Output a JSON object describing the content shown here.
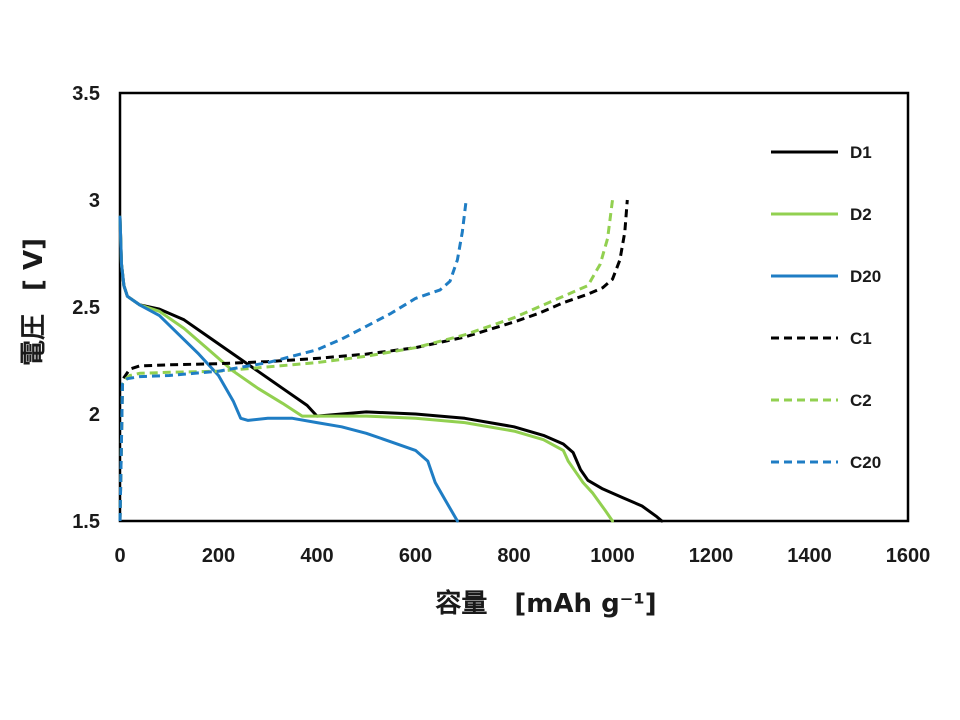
{
  "chart_data": {
    "type": "line",
    "xlabel": "容量",
    "xlabel_unit": "[mAh g⁻¹]",
    "ylabel": "電圧",
    "ylabel_unit": "[ V]",
    "xlim": [
      0,
      1600
    ],
    "ylim": [
      1.5,
      3.5
    ],
    "x_ticks": [
      "0",
      "200",
      "400",
      "600",
      "800",
      "1000",
      "1200",
      "1400",
      "1600"
    ],
    "y_ticks": [
      "1.5",
      "2",
      "2.5",
      "3",
      "3.5"
    ],
    "grid": false,
    "legend_position": "right",
    "series": [
      {
        "name": "D1",
        "color": "#000000",
        "dash": "solid",
        "points": [
          [
            0,
            2.92
          ],
          [
            3,
            2.7
          ],
          [
            8,
            2.6
          ],
          [
            15,
            2.55
          ],
          [
            40,
            2.51
          ],
          [
            80,
            2.49
          ],
          [
            130,
            2.44
          ],
          [
            180,
            2.36
          ],
          [
            230,
            2.28
          ],
          [
            280,
            2.2
          ],
          [
            330,
            2.12
          ],
          [
            380,
            2.04
          ],
          [
            400,
            1.99
          ],
          [
            450,
            2.0
          ],
          [
            500,
            2.01
          ],
          [
            600,
            2.0
          ],
          [
            700,
            1.98
          ],
          [
            800,
            1.94
          ],
          [
            860,
            1.9
          ],
          [
            900,
            1.86
          ],
          [
            920,
            1.82
          ],
          [
            935,
            1.74
          ],
          [
            950,
            1.69
          ],
          [
            980,
            1.65
          ],
          [
            1020,
            1.61
          ],
          [
            1060,
            1.57
          ],
          [
            1090,
            1.52
          ],
          [
            1100,
            1.5
          ]
        ]
      },
      {
        "name": "D2",
        "color": "#92d050",
        "dash": "solid",
        "points": [
          [
            0,
            2.92
          ],
          [
            3,
            2.7
          ],
          [
            8,
            2.6
          ],
          [
            15,
            2.55
          ],
          [
            40,
            2.51
          ],
          [
            80,
            2.48
          ],
          [
            130,
            2.4
          ],
          [
            180,
            2.3
          ],
          [
            230,
            2.2
          ],
          [
            280,
            2.12
          ],
          [
            330,
            2.05
          ],
          [
            370,
            1.99
          ],
          [
            400,
            1.99
          ],
          [
            450,
            1.99
          ],
          [
            500,
            1.99
          ],
          [
            600,
            1.98
          ],
          [
            700,
            1.96
          ],
          [
            800,
            1.92
          ],
          [
            860,
            1.88
          ],
          [
            900,
            1.83
          ],
          [
            910,
            1.78
          ],
          [
            925,
            1.73
          ],
          [
            940,
            1.68
          ],
          [
            960,
            1.63
          ],
          [
            985,
            1.55
          ],
          [
            1000,
            1.5
          ]
        ]
      },
      {
        "name": "D20",
        "color": "#1f7dc4",
        "dash": "solid",
        "points": [
          [
            0,
            2.92
          ],
          [
            3,
            2.7
          ],
          [
            8,
            2.6
          ],
          [
            15,
            2.55
          ],
          [
            40,
            2.51
          ],
          [
            80,
            2.46
          ],
          [
            120,
            2.37
          ],
          [
            160,
            2.28
          ],
          [
            200,
            2.18
          ],
          [
            230,
            2.06
          ],
          [
            245,
            1.98
          ],
          [
            260,
            1.97
          ],
          [
            300,
            1.98
          ],
          [
            350,
            1.98
          ],
          [
            400,
            1.96
          ],
          [
            450,
            1.94
          ],
          [
            500,
            1.91
          ],
          [
            550,
            1.87
          ],
          [
            600,
            1.83
          ],
          [
            625,
            1.78
          ],
          [
            640,
            1.68
          ],
          [
            660,
            1.6
          ],
          [
            675,
            1.54
          ],
          [
            685,
            1.5
          ]
        ]
      },
      {
        "name": "C1",
        "color": "#000000",
        "dash": "dashed",
        "points": [
          [
            0,
            1.5
          ],
          [
            5,
            2.16
          ],
          [
            20,
            2.21
          ],
          [
            40,
            2.225
          ],
          [
            100,
            2.23
          ],
          [
            200,
            2.235
          ],
          [
            300,
            2.245
          ],
          [
            400,
            2.26
          ],
          [
            500,
            2.28
          ],
          [
            600,
            2.31
          ],
          [
            700,
            2.36
          ],
          [
            800,
            2.43
          ],
          [
            850,
            2.47
          ],
          [
            900,
            2.52
          ],
          [
            950,
            2.56
          ],
          [
            980,
            2.59
          ],
          [
            1000,
            2.63
          ],
          [
            1015,
            2.72
          ],
          [
            1025,
            2.85
          ],
          [
            1030,
            3.0
          ]
        ]
      },
      {
        "name": "C2",
        "color": "#92d050",
        "dash": "dashed",
        "points": [
          [
            0,
            1.5
          ],
          [
            5,
            2.15
          ],
          [
            20,
            2.18
          ],
          [
            40,
            2.19
          ],
          [
            100,
            2.195
          ],
          [
            200,
            2.2
          ],
          [
            300,
            2.22
          ],
          [
            400,
            2.24
          ],
          [
            500,
            2.27
          ],
          [
            600,
            2.31
          ],
          [
            700,
            2.37
          ],
          [
            800,
            2.45
          ],
          [
            850,
            2.5
          ],
          [
            900,
            2.55
          ],
          [
            950,
            2.6
          ],
          [
            975,
            2.7
          ],
          [
            990,
            2.82
          ],
          [
            1000,
            3.0
          ]
        ]
      },
      {
        "name": "C20",
        "color": "#1f7dc4",
        "dash": "dashed",
        "points": [
          [
            0,
            1.5
          ],
          [
            5,
            2.14
          ],
          [
            15,
            2.165
          ],
          [
            40,
            2.175
          ],
          [
            100,
            2.18
          ],
          [
            200,
            2.2
          ],
          [
            300,
            2.24
          ],
          [
            400,
            2.3
          ],
          [
            450,
            2.35
          ],
          [
            500,
            2.41
          ],
          [
            550,
            2.47
          ],
          [
            600,
            2.54
          ],
          [
            650,
            2.58
          ],
          [
            670,
            2.62
          ],
          [
            685,
            2.72
          ],
          [
            695,
            2.85
          ],
          [
            703,
            3.0
          ]
        ]
      }
    ]
  }
}
